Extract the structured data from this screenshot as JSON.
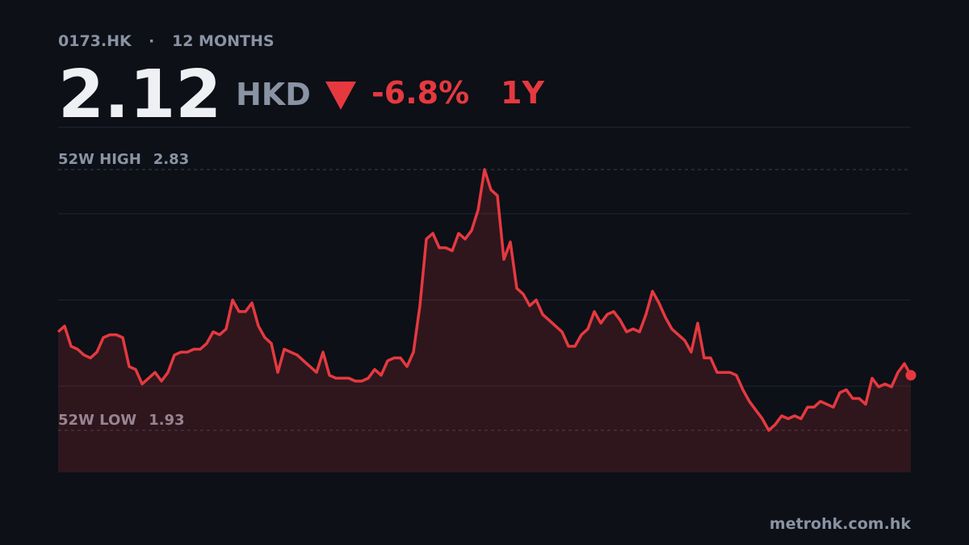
{
  "chart_data": {
    "type": "line",
    "ticker": "0173.HK",
    "separator": "·",
    "period": "12 MONTHS",
    "price": 2.12,
    "currency": "HKD",
    "change": "-6.8%",
    "range_label": "1Y",
    "high": {
      "label": "52W HIGH",
      "value": 2.83
    },
    "low": {
      "label": "52W LOW",
      "value": 1.93
    },
    "footer": "metrohk.com.hk",
    "color": "#e5393f",
    "ylim": [
      1.785,
      2.975
    ],
    "gridlines": [
      2.0825,
      2.38,
      2.6775
    ],
    "values": [
      2.27,
      2.29,
      2.22,
      2.21,
      2.19,
      2.18,
      2.2,
      2.25,
      2.26,
      2.26,
      2.25,
      2.15,
      2.14,
      2.09,
      2.11,
      2.13,
      2.1,
      2.13,
      2.19,
      2.2,
      2.2,
      2.21,
      2.21,
      2.23,
      2.27,
      2.26,
      2.28,
      2.38,
      2.34,
      2.34,
      2.37,
      2.29,
      2.25,
      2.23,
      2.13,
      2.21,
      2.2,
      2.19,
      2.17,
      2.15,
      2.13,
      2.2,
      2.12,
      2.11,
      2.11,
      2.11,
      2.1,
      2.1,
      2.11,
      2.14,
      2.12,
      2.17,
      2.18,
      2.18,
      2.15,
      2.2,
      2.36,
      2.59,
      2.61,
      2.56,
      2.56,
      2.55,
      2.61,
      2.59,
      2.62,
      2.69,
      2.83,
      2.76,
      2.74,
      2.52,
      2.58,
      2.42,
      2.4,
      2.36,
      2.38,
      2.33,
      2.31,
      2.29,
      2.27,
      2.22,
      2.22,
      2.26,
      2.28,
      2.34,
      2.3,
      2.33,
      2.34,
      2.31,
      2.27,
      2.28,
      2.27,
      2.33,
      2.41,
      2.37,
      2.32,
      2.28,
      2.26,
      2.24,
      2.2,
      2.3,
      2.18,
      2.18,
      2.13,
      2.13,
      2.13,
      2.12,
      2.07,
      2.03,
      2.0,
      1.97,
      1.93,
      1.95,
      1.98,
      1.97,
      1.98,
      1.97,
      2.01,
      2.01,
      2.03,
      2.02,
      2.01,
      2.06,
      2.07,
      2.04,
      2.04,
      2.02,
      2.11,
      2.08,
      2.09,
      2.08,
      2.13,
      2.16,
      2.12
    ]
  }
}
